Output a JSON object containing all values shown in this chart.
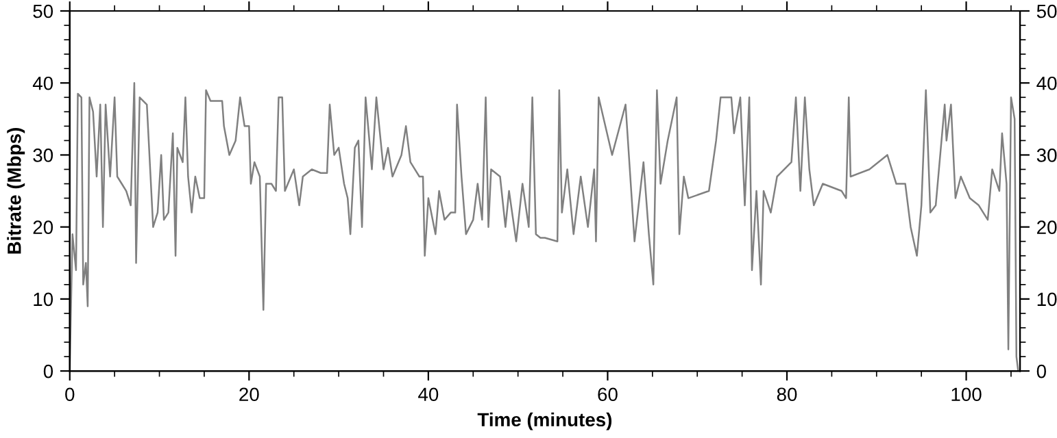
{
  "chart_data": {
    "type": "line",
    "xlabel": "Time (minutes)",
    "ylabel": "Bitrate (Mbps)",
    "xlim": [
      0,
      106
    ],
    "ylim": [
      0,
      50
    ],
    "y2lim": [
      0,
      50
    ],
    "xticks": [
      0,
      {
        "value": 5,
        "label": null
      },
      {
        "value": 10,
        "label": null
      },
      {
        "value": 15,
        "label": null
      },
      20,
      {
        "value": 25,
        "label": null
      },
      {
        "value": 30,
        "label": null
      },
      {
        "value": 35,
        "label": null
      },
      40,
      {
        "value": 45,
        "label": null
      },
      {
        "value": 50,
        "label": null
      },
      {
        "value": 55,
        "label": null
      },
      60,
      {
        "value": 65,
        "label": null
      },
      {
        "value": 70,
        "label": null
      },
      {
        "value": 75,
        "label": null
      },
      80,
      {
        "value": 85,
        "label": null
      },
      {
        "value": 90,
        "label": null
      },
      {
        "value": 95,
        "label": null
      },
      100,
      {
        "value": 105,
        "label": null
      }
    ],
    "yticks": [
      0,
      {
        "value": 2,
        "label": null
      },
      {
        "value": 4,
        "label": null
      },
      {
        "value": 6,
        "label": null
      },
      {
        "value": 8,
        "label": null
      },
      10,
      {
        "value": 12,
        "label": null
      },
      {
        "value": 14,
        "label": null
      },
      {
        "value": 16,
        "label": null
      },
      {
        "value": 18,
        "label": null
      },
      20,
      {
        "value": 22,
        "label": null
      },
      {
        "value": 24,
        "label": null
      },
      {
        "value": 26,
        "label": null
      },
      {
        "value": 28,
        "label": null
      },
      30,
      {
        "value": 32,
        "label": null
      },
      {
        "value": 34,
        "label": null
      },
      {
        "value": 36,
        "label": null
      },
      {
        "value": 38,
        "label": null
      },
      40,
      {
        "value": 42,
        "label": null
      },
      {
        "value": 44,
        "label": null
      },
      {
        "value": 46,
        "label": null
      },
      {
        "value": 48,
        "label": null
      },
      50
    ],
    "y2ticks": [
      0,
      {
        "value": 2,
        "label": null
      },
      {
        "value": 4,
        "label": null
      },
      {
        "value": 6,
        "label": null
      },
      {
        "value": 8,
        "label": null
      },
      10,
      {
        "value": 12,
        "label": null
      },
      {
        "value": 14,
        "label": null
      },
      {
        "value": 16,
        "label": null
      },
      {
        "value": 18,
        "label": null
      },
      20,
      {
        "value": 22,
        "label": null
      },
      {
        "value": 24,
        "label": null
      },
      {
        "value": 26,
        "label": null
      },
      {
        "value": 28,
        "label": null
      },
      30,
      {
        "value": 32,
        "label": null
      },
      {
        "value": 34,
        "label": null
      },
      {
        "value": 36,
        "label": null
      },
      {
        "value": 38,
        "label": null
      },
      40,
      {
        "value": 42,
        "label": null
      },
      {
        "value": 44,
        "label": null
      },
      {
        "value": 46,
        "label": null
      },
      {
        "value": 48,
        "label": null
      },
      50
    ],
    "grid": false,
    "legend": false,
    "series": [
      {
        "color": "#808080",
        "x": [
          0,
          0.3,
          0.7,
          0.9,
          1.3,
          1.5,
          1.8,
          2.0,
          2.2,
          2.6,
          3.0,
          3.4,
          3.7,
          4.0,
          4.5,
          5.0,
          5.3,
          5.8,
          6.3,
          6.8,
          7.2,
          7.4,
          7.8,
          8.6,
          9.3,
          9.8,
          10.2,
          10.5,
          11.0,
          11.5,
          11.8,
          12.0,
          12.6,
          12.9,
          13.2,
          13.6,
          14.0,
          14.5,
          15.0,
          15.2,
          15.7,
          17.0,
          17.2,
          17.8,
          18.5,
          19.0,
          19.5,
          20.0,
          20.2,
          20.6,
          21.2,
          21.6,
          21.9,
          22.5,
          23.0,
          23.3,
          23.7,
          24.0,
          25.0,
          25.6,
          26.0,
          27.0,
          28.0,
          28.7,
          29.0,
          29.5,
          30.0,
          30.6,
          31.0,
          31.3,
          31.8,
          32.2,
          32.6,
          33.0,
          33.7,
          34.2,
          35.0,
          35.5,
          36.0,
          37.0,
          37.5,
          38.0,
          39.0,
          39.4,
          39.6,
          40.0,
          40.8,
          41.2,
          41.8,
          42.5,
          43.0,
          43.2,
          43.7,
          44.2,
          45.0,
          45.5,
          46.0,
          46.4,
          46.7,
          47.0,
          48.0,
          48.6,
          49.0,
          49.8,
          50.5,
          51.2,
          51.6,
          52.0,
          52.5,
          53.0,
          54.4,
          54.6,
          54.9,
          55.5,
          56.2,
          57.0,
          57.8,
          58.5,
          58.7,
          59.0,
          60.5,
          62.0,
          63.0,
          64.0,
          64.6,
          65.1,
          65.5,
          65.9,
          66.7,
          67.7,
          68.0,
          68.5,
          69.0,
          71.3,
          72.1,
          72.6,
          73.8,
          74.1,
          74.8,
          75.3,
          75.8,
          76.1,
          76.6,
          77.1,
          77.4,
          78.2,
          78.9,
          80.5,
          81.0,
          81.5,
          82.0,
          82.5,
          83.0,
          84.0,
          86.1,
          86.6,
          86.9,
          87.1,
          89.2,
          91.2,
          92.2,
          93.2,
          93.8,
          94.5,
          95.0,
          95.5,
          96.0,
          96.6,
          97.6,
          97.8,
          98.3,
          98.8,
          99.4,
          100.4,
          101.4,
          102.4,
          102.9,
          103.7,
          104.0,
          104.5,
          104.7,
          105.0,
          105.4,
          105.6,
          105.8
        ],
        "values": [
          0,
          19,
          14,
          38.5,
          38,
          12,
          15,
          9,
          38,
          36,
          27,
          37,
          20,
          37,
          27,
          38,
          27,
          26,
          25,
          23,
          40,
          15,
          38,
          37,
          20,
          22,
          30,
          21,
          22,
          33,
          16,
          31,
          29,
          38,
          27,
          22,
          27,
          24,
          24,
          39,
          37.5,
          37.5,
          34,
          30,
          32,
          38,
          34,
          34,
          26,
          29,
          27,
          8.5,
          26,
          26,
          25,
          38,
          38,
          25,
          28,
          23,
          27,
          28,
          27.5,
          27.5,
          37,
          30,
          31,
          26,
          24,
          19,
          31,
          32,
          20,
          38,
          28,
          38,
          28,
          31,
          27,
          30,
          34,
          29,
          27,
          27,
          16,
          24,
          19,
          25,
          21,
          22,
          22,
          37,
          27,
          19,
          21,
          26,
          21,
          38,
          20,
          28,
          27,
          20,
          25,
          18,
          26,
          20,
          38,
          19,
          18.5,
          18.5,
          18,
          39,
          22,
          28,
          19,
          27,
          20,
          28,
          18,
          38,
          30,
          37,
          18,
          29,
          19,
          12,
          39,
          26,
          32,
          38,
          19,
          27,
          24,
          25,
          32,
          38,
          38,
          33,
          38,
          23,
          38,
          14,
          25,
          12,
          25,
          22,
          27,
          29,
          38,
          25,
          38,
          28,
          23,
          26,
          25,
          24,
          38,
          27,
          28,
          30,
          26,
          26,
          20,
          16,
          23,
          39,
          22,
          23,
          37,
          32,
          37,
          24,
          27,
          24,
          23,
          21,
          28,
          25,
          33,
          26,
          3,
          38,
          35,
          2,
          0
        ]
      }
    ]
  }
}
